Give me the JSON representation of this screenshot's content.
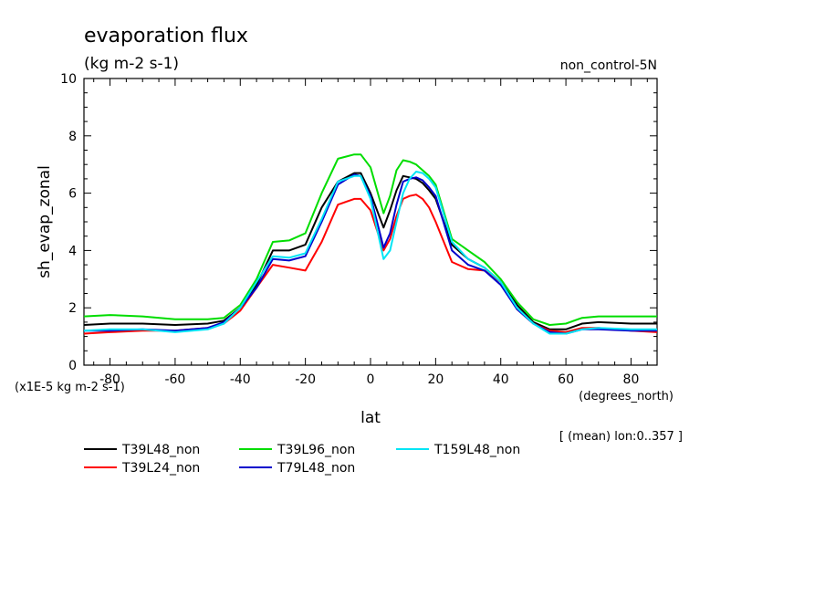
{
  "chart_data": {
    "type": "line",
    "title": "evaporation flux",
    "subtitle": "(kg m-2 s-1)",
    "experiment_label": "non_control-5N",
    "ylabel": "sh_evap_zonal",
    "xlabel": "lat",
    "x_units": "(degrees_north)",
    "y_scale_note": "(x1E-5 kg m-2 s-1)",
    "footnote": "[ (mean) lon:0..357 ]",
    "xlim": [
      -88,
      88
    ],
    "ylim": [
      0,
      10
    ],
    "x_ticks": [
      -80,
      -60,
      -40,
      -20,
      0,
      20,
      40,
      60,
      80
    ],
    "y_ticks": [
      0,
      2,
      4,
      6,
      8,
      10
    ],
    "grid": false,
    "legend_position": "bottom",
    "x": [
      -88,
      -80,
      -70,
      -60,
      -50,
      -45,
      -40,
      -35,
      -30,
      -25,
      -20,
      -15,
      -10,
      -5,
      -3,
      0,
      4,
      6,
      8,
      10,
      12,
      14,
      16,
      18,
      20,
      25,
      30,
      35,
      40,
      45,
      50,
      55,
      60,
      65,
      70,
      80,
      88
    ],
    "series": [
      {
        "name": "T39L48_non",
        "color": "#000000",
        "values": [
          1.4,
          1.45,
          1.45,
          1.4,
          1.45,
          1.55,
          2.0,
          2.8,
          4.0,
          4.0,
          4.2,
          5.5,
          6.4,
          6.7,
          6.7,
          6.0,
          4.8,
          5.4,
          6.1,
          6.6,
          6.55,
          6.5,
          6.35,
          6.1,
          5.8,
          4.2,
          3.7,
          3.4,
          2.9,
          2.1,
          1.5,
          1.25,
          1.25,
          1.45,
          1.5,
          1.45,
          1.45
        ]
      },
      {
        "name": "T39L24_non",
        "color": "#ff0000",
        "values": [
          1.1,
          1.15,
          1.2,
          1.2,
          1.3,
          1.45,
          1.9,
          2.7,
          3.5,
          3.4,
          3.3,
          4.3,
          5.6,
          5.8,
          5.8,
          5.4,
          4.0,
          4.4,
          5.2,
          5.8,
          5.9,
          5.95,
          5.8,
          5.5,
          5.0,
          3.6,
          3.35,
          3.3,
          2.9,
          1.95,
          1.45,
          1.2,
          1.15,
          1.3,
          1.3,
          1.2,
          1.15
        ]
      },
      {
        "name": "T39L96_non",
        "color": "#00dd00",
        "values": [
          1.7,
          1.75,
          1.7,
          1.6,
          1.6,
          1.65,
          2.1,
          3.0,
          4.3,
          4.35,
          4.6,
          6.0,
          7.2,
          7.35,
          7.35,
          6.9,
          5.3,
          5.9,
          6.8,
          7.15,
          7.1,
          7.0,
          6.8,
          6.6,
          6.3,
          4.4,
          4.0,
          3.6,
          3.0,
          2.2,
          1.6,
          1.4,
          1.45,
          1.65,
          1.7,
          1.7,
          1.7
        ]
      },
      {
        "name": "T79L48_non",
        "color": "#0000cc",
        "values": [
          1.2,
          1.2,
          1.25,
          1.2,
          1.3,
          1.5,
          2.0,
          2.7,
          3.7,
          3.65,
          3.8,
          5.0,
          6.3,
          6.65,
          6.6,
          5.9,
          4.1,
          4.6,
          5.6,
          6.4,
          6.5,
          6.55,
          6.45,
          6.2,
          5.9,
          4.0,
          3.5,
          3.3,
          2.8,
          1.95,
          1.45,
          1.15,
          1.1,
          1.25,
          1.25,
          1.2,
          1.2
        ]
      },
      {
        "name": "T159L48_non",
        "color": "#00e5f5",
        "values": [
          1.2,
          1.25,
          1.25,
          1.15,
          1.25,
          1.45,
          2.0,
          2.9,
          3.8,
          3.75,
          3.9,
          5.1,
          6.4,
          6.6,
          6.6,
          5.8,
          3.7,
          4.0,
          5.0,
          6.0,
          6.5,
          6.75,
          6.7,
          6.5,
          6.2,
          4.3,
          3.7,
          3.4,
          2.9,
          2.0,
          1.45,
          1.1,
          1.1,
          1.25,
          1.3,
          1.25,
          1.25
        ]
      }
    ]
  }
}
